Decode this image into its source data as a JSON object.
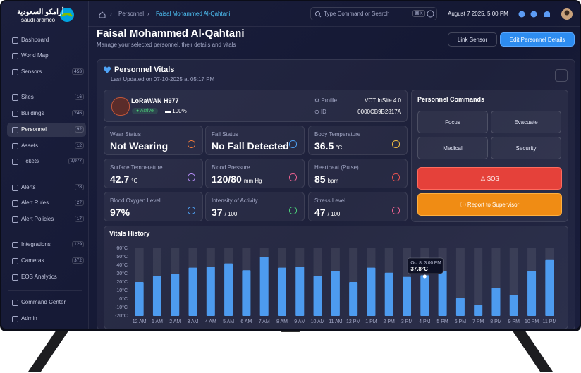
{
  "sidebar": {
    "logo": {
      "arabic": "أرامكو السعودية",
      "latin": "saudi aramco"
    },
    "nav": [
      {
        "label": "Dashboard"
      },
      {
        "label": "World Map"
      },
      {
        "label": "Sensors",
        "count": "453"
      },
      {
        "label": "Sites",
        "count": "16"
      },
      {
        "label": "Buildings",
        "count": "246"
      },
      {
        "label": "Personnel",
        "count": "92"
      },
      {
        "label": "Assets",
        "count": "12"
      },
      {
        "label": "Tickets",
        "count": "2,977"
      },
      {
        "label": "Alerts",
        "count": "78"
      },
      {
        "label": "Alert Rules",
        "count": "27"
      },
      {
        "label": "Alert Policies",
        "count": "17"
      },
      {
        "label": "Integrations",
        "count": "129"
      },
      {
        "label": "Cameras",
        "count": "372"
      },
      {
        "label": "EOS Analytics"
      },
      {
        "label": "Command Center"
      },
      {
        "label": "Admin"
      }
    ]
  },
  "header": {
    "breadcrumb": [
      "Personnel",
      "Faisal Mohammed Al-Qahtani"
    ],
    "search": {
      "placeholder": "Type Command or Search",
      "shortcut": "⌘K"
    },
    "datetime": "August 7 2025, 5:00 PM"
  },
  "page": {
    "title": "Faisal Mohammed Al-Qahtani",
    "subtitle": "Manage your selected personnel, their details and vitals",
    "actions": [
      "Link Sensor",
      "Edit Personnel Details"
    ]
  },
  "vitals_panel": {
    "title": "Personnel Vitals",
    "last_updated": "Last Updated on 07-10-2025 at 05:17 PM",
    "device": {
      "name": "LoRaWAN H977",
      "status": "Active",
      "battery": "100%",
      "profile_label": "Profile",
      "profile": "VCT InSite 4.0",
      "id_label": "ID",
      "id": "0000CB9B2817A"
    },
    "cards": [
      {
        "label": "Wear Status",
        "value": "Not Wearing"
      },
      {
        "label": "Fall Status",
        "value": "No Fall Detected"
      },
      {
        "label": "Body Temperature",
        "value": "36.5",
        "unit": "°C"
      },
      {
        "label": "Surface Temperature",
        "value": "42.7",
        "unit": "°C"
      },
      {
        "label": "Blood Pressure",
        "value": "120/80",
        "unit": "mm Hg"
      },
      {
        "label": "Heartbeat (Pulse)",
        "value": "85",
        "unit": "bpm"
      },
      {
        "label": "Blood Oxygen Level",
        "value": "97%"
      },
      {
        "label": "Intensity of Activity",
        "value": "37",
        "unit": "/ 100"
      },
      {
        "label": "Stress Level",
        "value": "47",
        "unit": "/ 100"
      }
    ]
  },
  "commands": {
    "title": "Personnel Commands",
    "buttons": [
      "Focus",
      "Evacuate",
      "Medical",
      "Security"
    ],
    "sos": "SOS",
    "report": "Report to Supervisor"
  },
  "chart_data": {
    "type": "bar",
    "title": "Vitals History",
    "categories": [
      "12 AM",
      "1 AM",
      "2 AM",
      "3 AM",
      "4 AM",
      "5 AM",
      "6 AM",
      "7 AM",
      "8 AM",
      "9 AM",
      "10 AM",
      "11 AM",
      "12 PM",
      "1 PM",
      "2 PM",
      "3 PM",
      "4 PM",
      "5 PM",
      "6 PM",
      "7 PM",
      "8 PM",
      "9 PM",
      "10 PM",
      "11 PM"
    ],
    "values": [
      20,
      27,
      30,
      37,
      38,
      42,
      34,
      50,
      37,
      38,
      27,
      33,
      20,
      37,
      31,
      26,
      28,
      33,
      1,
      -7,
      13,
      5,
      33,
      46
    ],
    "color": "#4d9bef",
    "ylim": [
      -20,
      60
    ],
    "yticks": [
      {
        "value": 60,
        "label": "60°C"
      },
      {
        "value": 50,
        "label": "50°C"
      },
      {
        "value": 40,
        "label": "40°C"
      },
      {
        "value": 30,
        "label": "30°C"
      },
      {
        "value": 20,
        "label": "20°C"
      },
      {
        "value": 10,
        "label": "10°C"
      },
      {
        "value": 0,
        "label": "0°C"
      },
      {
        "value": -10,
        "label": "-10°C"
      },
      {
        "value": -20,
        "label": "-20°C"
      }
    ],
    "tooltip": [
      "Oct 8, 3:00 PM",
      "37.8°C"
    ]
  }
}
